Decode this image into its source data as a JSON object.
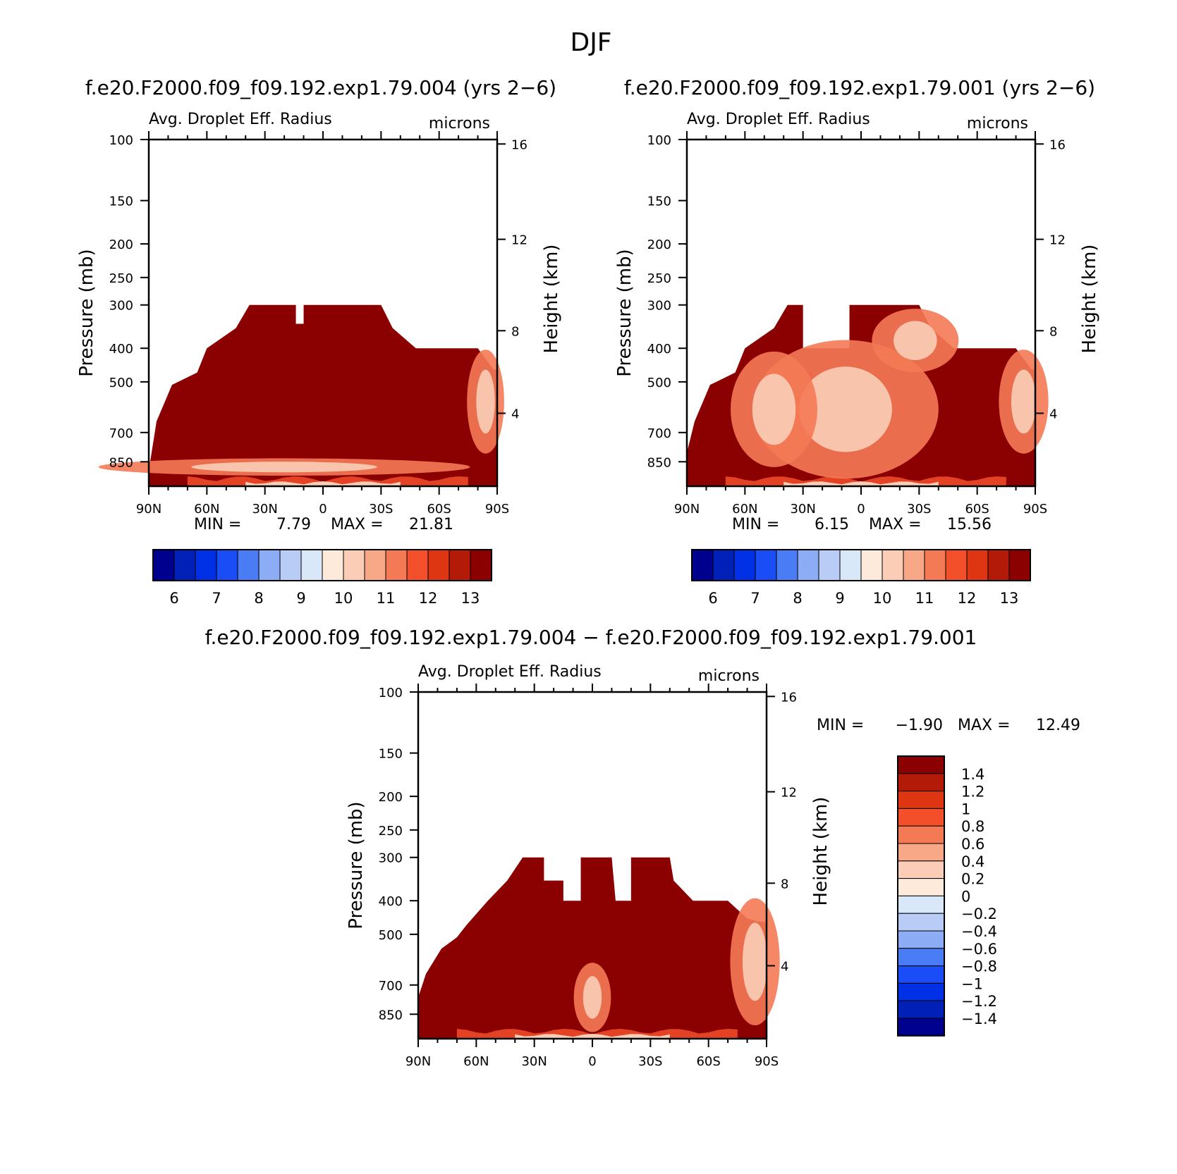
{
  "page": {
    "title": "DJF",
    "panel1_header": "f.e20.F2000.f09_f09.192.exp1.79.004 (yrs 2−6)",
    "panel2_header": "f.e20.F2000.f09_f09.192.exp1.79.001 (yrs 2−6)",
    "panel3_header": "f.e20.F2000.f09_f09.192.exp1.79.004 − f.e20.F2000.f09_f09.192.exp1.79.001"
  },
  "colorbar_main": {
    "colors": [
      "#00008f",
      "#0020b8",
      "#0030e6",
      "#1a4df5",
      "#4a7df5",
      "#8cacf5",
      "#b8ccf5",
      "#d8e8f8",
      "#fdeadb",
      "#fbcdb7",
      "#f8a887",
      "#f47a55",
      "#f24f2a",
      "#de3512",
      "#b31b08",
      "#8b0000"
    ],
    "labels": [
      "6",
      "7",
      "8",
      "9",
      "10",
      "11",
      "12",
      "13"
    ]
  },
  "colorbar_diff": {
    "colors": [
      "#8b0000",
      "#b31b08",
      "#de3512",
      "#f24f2a",
      "#f47a55",
      "#f8a887",
      "#fbcdb7",
      "#fdeadb",
      "#d8e8f8",
      "#b8ccf5",
      "#8cacf5",
      "#4a7df5",
      "#1a4df5",
      "#0030e6",
      "#0020b8",
      "#00008f"
    ],
    "labels": [
      "1.4",
      "1.2",
      "1",
      "0.8",
      "0.6",
      "0.4",
      "0.2",
      "0",
      "−0.2",
      "−0.4",
      "−0.6",
      "−0.8",
      "−1",
      "−1.2",
      "−1.4"
    ]
  },
  "chart_data": [
    {
      "type": "heatmap",
      "title": "Avg. Droplet Eff. Radius",
      "units_label": "microns",
      "ylabel": "Pressure (mb)",
      "ylabel_right": "Height (km)",
      "x_ticks": [
        "90N",
        "60N",
        "30N",
        "0",
        "30S",
        "60S",
        "90S"
      ],
      "y_ticks": [
        "100",
        "150",
        "200",
        "250",
        "300",
        "400",
        "500",
        "700",
        "850"
      ],
      "y_ticks_right": [
        "16",
        "12",
        "8",
        "4"
      ],
      "min_label": "MIN =",
      "min_value": "7.79",
      "max_label": "MAX =",
      "max_value": "21.81",
      "fill": "#8b0000",
      "cloud_top_profile": [
        {
          "lat": 90,
          "p": 900
        },
        {
          "lat": 86,
          "p": 650
        },
        {
          "lat": 78,
          "p": 510
        },
        {
          "lat": 65,
          "p": 470
        },
        {
          "lat": 60,
          "p": 400
        },
        {
          "lat": 45,
          "p": 350
        },
        {
          "lat": 38,
          "p": 300
        },
        {
          "lat": 14,
          "p": 300
        },
        {
          "lat": 14,
          "p": 340
        },
        {
          "lat": 10,
          "p": 340
        },
        {
          "lat": 10,
          "p": 300
        },
        {
          "lat": -30,
          "p": 300
        },
        {
          "lat": -36,
          "p": 350
        },
        {
          "lat": -48,
          "p": 400
        },
        {
          "lat": -80,
          "p": 400
        },
        {
          "lat": -88,
          "p": 460
        }
      ],
      "low_value_zones": [
        {
          "lat": -84,
          "p": 570,
          "w": 6,
          "h": 180
        },
        {
          "lat": 20,
          "p": 880,
          "w": 60,
          "h": 30
        }
      ]
    },
    {
      "type": "heatmap",
      "title": "Avg. Droplet Eff. Radius",
      "units_label": "microns",
      "ylabel": "Pressure (mb)",
      "ylabel_right": "Height (km)",
      "x_ticks": [
        "90N",
        "60N",
        "30N",
        "0",
        "30S",
        "60S",
        "90S"
      ],
      "y_ticks": [
        "100",
        "150",
        "200",
        "250",
        "300",
        "400",
        "500",
        "700",
        "850"
      ],
      "y_ticks_right": [
        "16",
        "12",
        "8",
        "4"
      ],
      "min_label": "MIN =",
      "min_value": "6.15",
      "max_label": "MAX =",
      "max_value": "15.56",
      "fill": "#8b0000",
      "cloud_top_profile": [
        {
          "lat": 90,
          "p": 800
        },
        {
          "lat": 86,
          "p": 650
        },
        {
          "lat": 78,
          "p": 510
        },
        {
          "lat": 65,
          "p": 470
        },
        {
          "lat": 60,
          "p": 400
        },
        {
          "lat": 45,
          "p": 350
        },
        {
          "lat": 38,
          "p": 300
        },
        {
          "lat": 30,
          "p": 300
        },
        {
          "lat": 30,
          "p": 400
        },
        {
          "lat": 6,
          "p": 400
        },
        {
          "lat": 6,
          "p": 300
        },
        {
          "lat": -30,
          "p": 300
        },
        {
          "lat": -36,
          "p": 350
        },
        {
          "lat": -48,
          "p": 400
        },
        {
          "lat": -80,
          "p": 400
        },
        {
          "lat": -88,
          "p": 460
        }
      ],
      "low_value_zones": [
        {
          "lat": 8,
          "p": 600,
          "w": 30,
          "h": 240
        },
        {
          "lat": 45,
          "p": 600,
          "w": 14,
          "h": 200
        },
        {
          "lat": -28,
          "p": 380,
          "w": 14,
          "h": 110
        },
        {
          "lat": -84,
          "p": 570,
          "w": 8,
          "h": 180
        }
      ]
    },
    {
      "type": "heatmap",
      "title": "Avg. Droplet Eff. Radius",
      "units_label": "microns",
      "ylabel": "Pressure (mb)",
      "ylabel_right": "Height (km)",
      "x_ticks": [
        "90N",
        "60N",
        "30N",
        "0",
        "30S",
        "60S",
        "90S"
      ],
      "y_ticks": [
        "100",
        "150",
        "200",
        "250",
        "300",
        "400",
        "500",
        "700",
        "850"
      ],
      "y_ticks_right": [
        "16",
        "12",
        "8",
        "4"
      ],
      "min_label": "MIN =",
      "min_value": "−1.90",
      "max_label": "MAX =",
      "max_value": "12.49",
      "fill": "#8b0000",
      "cloud_top_profile": [
        {
          "lat": 90,
          "p": 760
        },
        {
          "lat": 86,
          "p": 650
        },
        {
          "lat": 78,
          "p": 550
        },
        {
          "lat": 70,
          "p": 510
        },
        {
          "lat": 65,
          "p": 470
        },
        {
          "lat": 54,
          "p": 400
        },
        {
          "lat": 44,
          "p": 350
        },
        {
          "lat": 36,
          "p": 300
        },
        {
          "lat": 25,
          "p": 300
        },
        {
          "lat": 25,
          "p": 350
        },
        {
          "lat": 15,
          "p": 350
        },
        {
          "lat": 15,
          "p": 400
        },
        {
          "lat": 6,
          "p": 400
        },
        {
          "lat": 6,
          "p": 300
        },
        {
          "lat": -10,
          "p": 300
        },
        {
          "lat": -12,
          "p": 400
        },
        {
          "lat": -20,
          "p": 400
        },
        {
          "lat": -20,
          "p": 300
        },
        {
          "lat": -40,
          "p": 300
        },
        {
          "lat": -42,
          "p": 350
        },
        {
          "lat": -52,
          "p": 400
        },
        {
          "lat": -70,
          "p": 400
        },
        {
          "lat": -80,
          "p": 450
        },
        {
          "lat": -86,
          "p": 460
        }
      ],
      "low_value_zones": [
        {
          "lat": -84,
          "p": 600,
          "w": 8,
          "h": 220
        },
        {
          "lat": 0,
          "p": 760,
          "w": 6,
          "h": 120
        }
      ]
    }
  ]
}
